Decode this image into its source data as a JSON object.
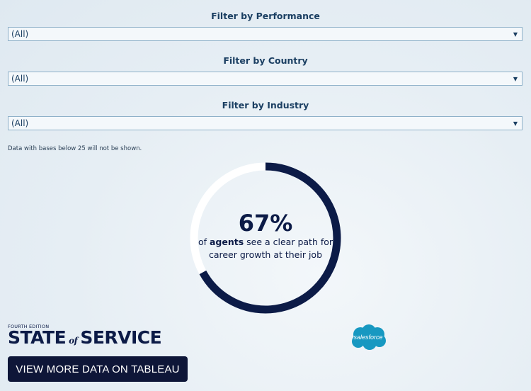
{
  "filters": [
    {
      "label": "Filter by Performance",
      "value": "(All)"
    },
    {
      "label": "Filter by Country",
      "value": "(All)"
    },
    {
      "label": "Filter by Industry",
      "value": "(All)"
    }
  ],
  "note": "Data with bases below 25 will not be shown.",
  "stat": {
    "value": 0.67,
    "percent_label": "67%",
    "line1_prefix": "of ",
    "line1_bold": "agents",
    "line1_suffix": " see a clear path for",
    "line2": "career growth at their job"
  },
  "colors": {
    "ring_fill": "#0c1b47",
    "ring_track": "#ffffff",
    "accent": "#0e1638",
    "salesforce": "#1798c1"
  },
  "logo": {
    "edition": "FOURTH EDITION",
    "word1": "STATE",
    "word_of": "of",
    "word2": "SERVICE"
  },
  "cta_label": "VIEW MORE DATA ON TABLEAU",
  "brand": {
    "name": "salesforce",
    "icon": "salesforce-cloud-icon"
  }
}
